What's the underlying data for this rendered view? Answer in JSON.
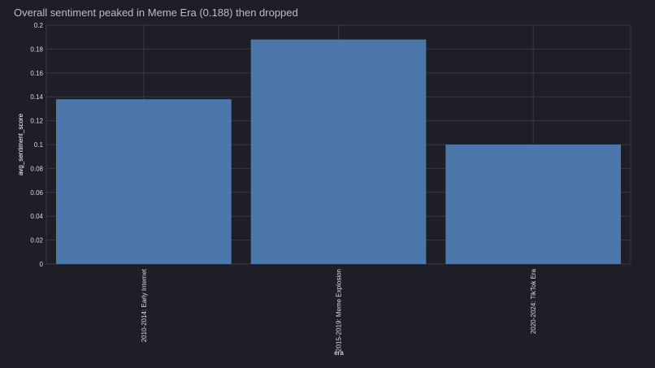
{
  "chart_data": {
    "type": "bar",
    "title": "Overall sentiment peaked in Meme Era (0.188) then dropped",
    "xlabel": "era",
    "ylabel": "avg_sentiment_score",
    "categories": [
      "2010-2014: Early Internet",
      "2015-2019: Meme Explosion",
      "2020-2024: TikTok Era"
    ],
    "values": [
      0.138,
      0.188,
      0.1
    ],
    "ylim": [
      0,
      0.2
    ],
    "yticks": [
      "0",
      "0.02",
      "0.04",
      "0.06",
      "0.08",
      "0.1",
      "0.12",
      "0.14",
      "0.16",
      "0.18",
      "0.2"
    ],
    "grid": true,
    "legend": "none",
    "colors": {
      "bar": "#4b77aa",
      "background": "#1e1e27",
      "grid": "#353846",
      "title": "#b9bcc8",
      "text": "#d8dae2"
    }
  }
}
